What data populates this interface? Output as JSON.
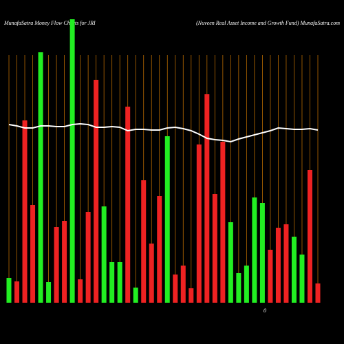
{
  "chart_data": {
    "type": "bar",
    "title": "MunafaSatra  Money Flow  Charts for JRI",
    "subtitle": "(Nuveen  Real Asset Income    and Growth Fund) MunafaSatra.com",
    "categories": [
      null,
      null,
      null,
      null,
      null,
      null,
      null,
      null,
      null,
      null,
      null,
      null,
      null,
      null,
      null,
      null,
      null,
      null,
      null,
      null,
      null,
      null,
      null,
      null,
      null,
      null,
      null,
      null,
      null,
      null,
      null,
      null,
      null,
      null,
      null,
      null,
      null,
      null,
      null,
      null
    ],
    "series": [
      {
        "values": [
          36,
          31,
          265,
          142,
          364,
          30,
          110,
          119,
          412,
          34,
          132,
          324,
          140,
          59,
          59,
          285,
          22,
          178,
          86,
          155,
          242,
          41,
          54,
          21,
          230,
          303,
          158,
          234,
          117,
          43,
          54,
          153,
          145,
          77,
          109,
          114,
          96,
          70,
          193,
          28
        ],
        "colors": [
          "#22ee22",
          "#ee2222",
          "#ee2222",
          "#ee2222",
          "#22ee22",
          "#22ee22",
          "#ee2222",
          "#ee2222",
          "#22ee22",
          "#ee2222",
          "#ee2222",
          "#ee2222",
          "#22ee22",
          "#22ee22",
          "#22ee22",
          "#ee2222",
          "#22ee22",
          "#ee2222",
          "#ee2222",
          "#ee2222",
          "#22ee22",
          "#ee2222",
          "#ee2222",
          "#ee2222",
          "#ee2222",
          "#ee2222",
          "#ee2222",
          "#ee2222",
          "#22ee22",
          "#22ee22",
          "#22ee22",
          "#22ee22",
          "#22ee22",
          "#ee2222",
          "#ee2222",
          "#ee2222",
          "#22ee22",
          "#22ee22",
          "#ee2222",
          "#ee2222"
        ]
      },
      {
        "type": "line",
        "color": "#ffffff",
        "values": [
          259,
          257,
          254,
          254,
          257,
          257,
          256,
          256,
          259,
          260,
          259,
          255,
          255,
          256,
          255,
          250,
          252,
          252,
          251,
          251,
          254,
          255,
          253,
          250,
          245,
          239,
          237,
          236,
          234,
          238,
          241,
          244,
          247,
          250,
          254,
          253,
          252,
          252,
          253,
          251
        ]
      }
    ],
    "ylim": [
      0,
      420
    ],
    "yticks": [
      0
    ],
    "grid": true,
    "grid_color": "#b86a00"
  }
}
